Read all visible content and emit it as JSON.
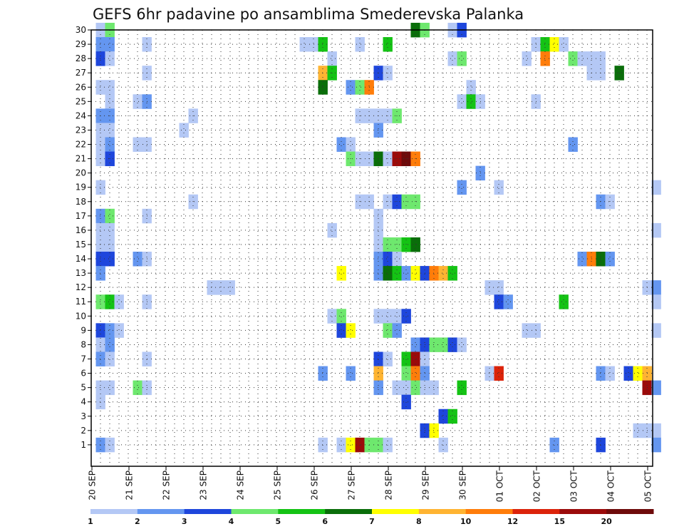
{
  "chart_data": {
    "type": "heatmap",
    "title": "GEFS 6hr padavine po ansamblima Smederevska Palanka",
    "xlabel": "",
    "ylabel": "",
    "x_ticks": [
      "20 SEP",
      "21 SEP",
      "22 SEP",
      "23 SEP",
      "24 SEP",
      "25 SEP",
      "26 SEP",
      "27 SEP",
      "28 SEP",
      "29 SEP",
      "30 SEP",
      "01 OCT",
      "02 OCT",
      "03 OCT",
      "04 OCT",
      "05 OCT"
    ],
    "y_ticks": [
      "1",
      "2",
      "3",
      "4",
      "5",
      "6",
      "7",
      "8",
      "9",
      "10",
      "11",
      "12",
      "13",
      "14",
      "15",
      "16",
      "17",
      "18",
      "19",
      "20",
      "21",
      "22",
      "23",
      "24",
      "25",
      "26",
      "27",
      "28",
      "29",
      "30"
    ],
    "steps_per_day": 4,
    "n_steps": 61,
    "members": 30,
    "grid": "dotted",
    "colorbar": {
      "location": "bottom",
      "labels": [
        "1",
        "2",
        "3",
        "4",
        "5",
        "6",
        "7",
        "8",
        "10",
        "12",
        "15",
        "20"
      ],
      "colors": [
        "#b4c8f5",
        "#6496f0",
        "#1e46dc",
        "#6ee86e",
        "#14c314",
        "#0a6e0a",
        "#ffff00",
        "#ffb432",
        "#ff7d0a",
        "#dc230a",
        "#9b0a0a",
        "#6e0a0a"
      ]
    },
    "cells": [
      [
        30,
        1,
        1
      ],
      [
        30,
        2,
        4
      ],
      [
        30,
        35,
        6
      ],
      [
        30,
        36,
        4
      ],
      [
        30,
        39,
        1
      ],
      [
        30,
        40,
        3
      ],
      [
        29,
        1,
        2
      ],
      [
        29,
        2,
        2
      ],
      [
        29,
        6,
        1
      ],
      [
        29,
        23,
        1
      ],
      [
        29,
        24,
        1
      ],
      [
        29,
        25,
        5
      ],
      [
        29,
        29,
        1
      ],
      [
        29,
        32,
        5
      ],
      [
        29,
        48,
        1
      ],
      [
        29,
        49,
        5
      ],
      [
        29,
        50,
        7
      ],
      [
        29,
        51,
        1
      ],
      [
        28,
        1,
        3
      ],
      [
        28,
        2,
        1
      ],
      [
        28,
        26,
        1
      ],
      [
        28,
        39,
        1
      ],
      [
        28,
        40,
        4
      ],
      [
        28,
        47,
        1
      ],
      [
        28,
        49,
        9
      ],
      [
        28,
        52,
        4
      ],
      [
        28,
        53,
        1
      ],
      [
        28,
        54,
        1
      ],
      [
        28,
        55,
        1
      ],
      [
        27,
        6,
        1
      ],
      [
        27,
        25,
        8
      ],
      [
        27,
        26,
        5
      ],
      [
        27,
        31,
        3
      ],
      [
        27,
        32,
        1
      ],
      [
        27,
        54,
        1
      ],
      [
        27,
        55,
        1
      ],
      [
        27,
        57,
        6
      ],
      [
        26,
        1,
        1
      ],
      [
        26,
        2,
        1
      ],
      [
        26,
        25,
        6
      ],
      [
        26,
        28,
        2
      ],
      [
        26,
        29,
        4
      ],
      [
        26,
        30,
        9
      ],
      [
        26,
        41,
        1
      ],
      [
        25,
        2,
        1
      ],
      [
        25,
        5,
        1
      ],
      [
        25,
        6,
        2
      ],
      [
        25,
        40,
        1
      ],
      [
        25,
        41,
        5
      ],
      [
        25,
        42,
        1
      ],
      [
        25,
        48,
        1
      ],
      [
        24,
        1,
        2
      ],
      [
        24,
        2,
        2
      ],
      [
        24,
        11,
        1
      ],
      [
        24,
        29,
        1
      ],
      [
        24,
        30,
        1
      ],
      [
        24,
        31,
        1
      ],
      [
        24,
        32,
        1
      ],
      [
        24,
        33,
        4
      ],
      [
        23,
        1,
        1
      ],
      [
        23,
        2,
        1
      ],
      [
        23,
        10,
        1
      ],
      [
        23,
        31,
        2
      ],
      [
        22,
        1,
        1
      ],
      [
        22,
        2,
        2
      ],
      [
        22,
        5,
        1
      ],
      [
        22,
        6,
        1
      ],
      [
        22,
        27,
        2
      ],
      [
        22,
        28,
        1
      ],
      [
        22,
        52,
        2
      ],
      [
        21,
        1,
        1
      ],
      [
        21,
        2,
        3
      ],
      [
        21,
        28,
        4
      ],
      [
        21,
        29,
        1
      ],
      [
        21,
        30,
        1
      ],
      [
        21,
        31,
        6
      ],
      [
        21,
        32,
        1
      ],
      [
        21,
        33,
        11
      ],
      [
        21,
        34,
        12
      ],
      [
        21,
        35,
        9
      ],
      [
        20,
        42,
        2
      ],
      [
        19,
        1,
        1
      ],
      [
        19,
        40,
        2
      ],
      [
        19,
        44,
        1
      ],
      [
        19,
        61,
        1
      ],
      [
        18,
        11,
        1
      ],
      [
        18,
        29,
        1
      ],
      [
        18,
        30,
        1
      ],
      [
        18,
        32,
        1
      ],
      [
        18,
        33,
        3
      ],
      [
        18,
        34,
        4
      ],
      [
        18,
        35,
        4
      ],
      [
        18,
        55,
        2
      ],
      [
        18,
        56,
        1
      ],
      [
        17,
        1,
        2
      ],
      [
        17,
        2,
        4
      ],
      [
        17,
        6,
        1
      ],
      [
        17,
        31,
        1
      ],
      [
        16,
        1,
        1
      ],
      [
        16,
        2,
        1
      ],
      [
        16,
        26,
        1
      ],
      [
        16,
        31,
        1
      ],
      [
        16,
        61,
        1
      ],
      [
        15,
        1,
        1
      ],
      [
        15,
        2,
        1
      ],
      [
        15,
        31,
        1
      ],
      [
        15,
        32,
        4
      ],
      [
        15,
        33,
        4
      ],
      [
        15,
        34,
        5
      ],
      [
        15,
        35,
        6
      ],
      [
        14,
        1,
        3
      ],
      [
        14,
        2,
        3
      ],
      [
        14,
        5,
        2
      ],
      [
        14,
        6,
        1
      ],
      [
        14,
        31,
        2
      ],
      [
        14,
        32,
        3
      ],
      [
        14,
        33,
        1
      ],
      [
        14,
        53,
        2
      ],
      [
        14,
        54,
        9
      ],
      [
        14,
        55,
        6
      ],
      [
        14,
        56,
        2
      ],
      [
        13,
        1,
        2
      ],
      [
        13,
        27,
        7
      ],
      [
        13,
        31,
        2
      ],
      [
        13,
        32,
        6
      ],
      [
        13,
        33,
        5
      ],
      [
        13,
        34,
        2
      ],
      [
        13,
        35,
        7
      ],
      [
        13,
        36,
        3
      ],
      [
        13,
        37,
        9
      ],
      [
        13,
        38,
        8
      ],
      [
        13,
        39,
        5
      ],
      [
        12,
        13,
        1
      ],
      [
        12,
        14,
        1
      ],
      [
        12,
        15,
        1
      ],
      [
        12,
        43,
        1
      ],
      [
        12,
        44,
        1
      ],
      [
        12,
        60,
        1
      ],
      [
        12,
        61,
        2
      ],
      [
        11,
        1,
        4
      ],
      [
        11,
        2,
        5
      ],
      [
        11,
        3,
        1
      ],
      [
        11,
        6,
        1
      ],
      [
        11,
        44,
        3
      ],
      [
        11,
        45,
        2
      ],
      [
        11,
        51,
        5
      ],
      [
        11,
        61,
        1
      ],
      [
        10,
        26,
        1
      ],
      [
        10,
        27,
        4
      ],
      [
        10,
        31,
        1
      ],
      [
        10,
        32,
        1
      ],
      [
        10,
        33,
        1
      ],
      [
        10,
        34,
        3
      ],
      [
        9,
        1,
        3
      ],
      [
        9,
        2,
        2
      ],
      [
        9,
        3,
        1
      ],
      [
        9,
        27,
        3
      ],
      [
        9,
        28,
        7
      ],
      [
        9,
        32,
        4
      ],
      [
        9,
        33,
        2
      ],
      [
        9,
        47,
        1
      ],
      [
        9,
        48,
        1
      ],
      [
        9,
        61,
        1
      ],
      [
        8,
        1,
        1
      ],
      [
        8,
        2,
        2
      ],
      [
        8,
        35,
        2
      ],
      [
        8,
        36,
        3
      ],
      [
        8,
        37,
        4
      ],
      [
        8,
        38,
        4
      ],
      [
        8,
        39,
        3
      ],
      [
        8,
        40,
        1
      ],
      [
        7,
        1,
        2
      ],
      [
        7,
        2,
        1
      ],
      [
        7,
        6,
        1
      ],
      [
        7,
        31,
        3
      ],
      [
        7,
        32,
        1
      ],
      [
        7,
        34,
        5
      ],
      [
        7,
        35,
        11
      ],
      [
        7,
        36,
        1
      ],
      [
        6,
        25,
        2
      ],
      [
        6,
        28,
        2
      ],
      [
        6,
        31,
        8
      ],
      [
        6,
        34,
        4
      ],
      [
        6,
        35,
        9
      ],
      [
        6,
        36,
        2
      ],
      [
        6,
        43,
        1
      ],
      [
        6,
        44,
        10
      ],
      [
        6,
        55,
        2
      ],
      [
        6,
        56,
        1
      ],
      [
        6,
        58,
        3
      ],
      [
        6,
        59,
        7
      ],
      [
        6,
        60,
        8
      ],
      [
        5,
        1,
        1
      ],
      [
        5,
        2,
        1
      ],
      [
        5,
        5,
        4
      ],
      [
        5,
        6,
        1
      ],
      [
        5,
        31,
        2
      ],
      [
        5,
        33,
        1
      ],
      [
        5,
        34,
        1
      ],
      [
        5,
        35,
        4
      ],
      [
        5,
        36,
        1
      ],
      [
        5,
        37,
        1
      ],
      [
        5,
        40,
        5
      ],
      [
        5,
        60,
        11
      ],
      [
        5,
        61,
        2
      ],
      [
        4,
        1,
        1
      ],
      [
        4,
        34,
        3
      ],
      [
        3,
        38,
        3
      ],
      [
        3,
        39,
        5
      ],
      [
        2,
        36,
        3
      ],
      [
        2,
        37,
        7
      ],
      [
        2,
        59,
        1
      ],
      [
        2,
        60,
        1
      ],
      [
        2,
        61,
        1
      ],
      [
        1,
        1,
        2
      ],
      [
        1,
        2,
        1
      ],
      [
        1,
        25,
        1
      ],
      [
        1,
        27,
        1
      ],
      [
        1,
        28,
        7
      ],
      [
        1,
        29,
        11
      ],
      [
        1,
        30,
        4
      ],
      [
        1,
        31,
        4
      ],
      [
        1,
        32,
        1
      ],
      [
        1,
        38,
        1
      ],
      [
        1,
        50,
        2
      ],
      [
        1,
        55,
        3
      ],
      [
        1,
        61,
        2
      ]
    ]
  }
}
